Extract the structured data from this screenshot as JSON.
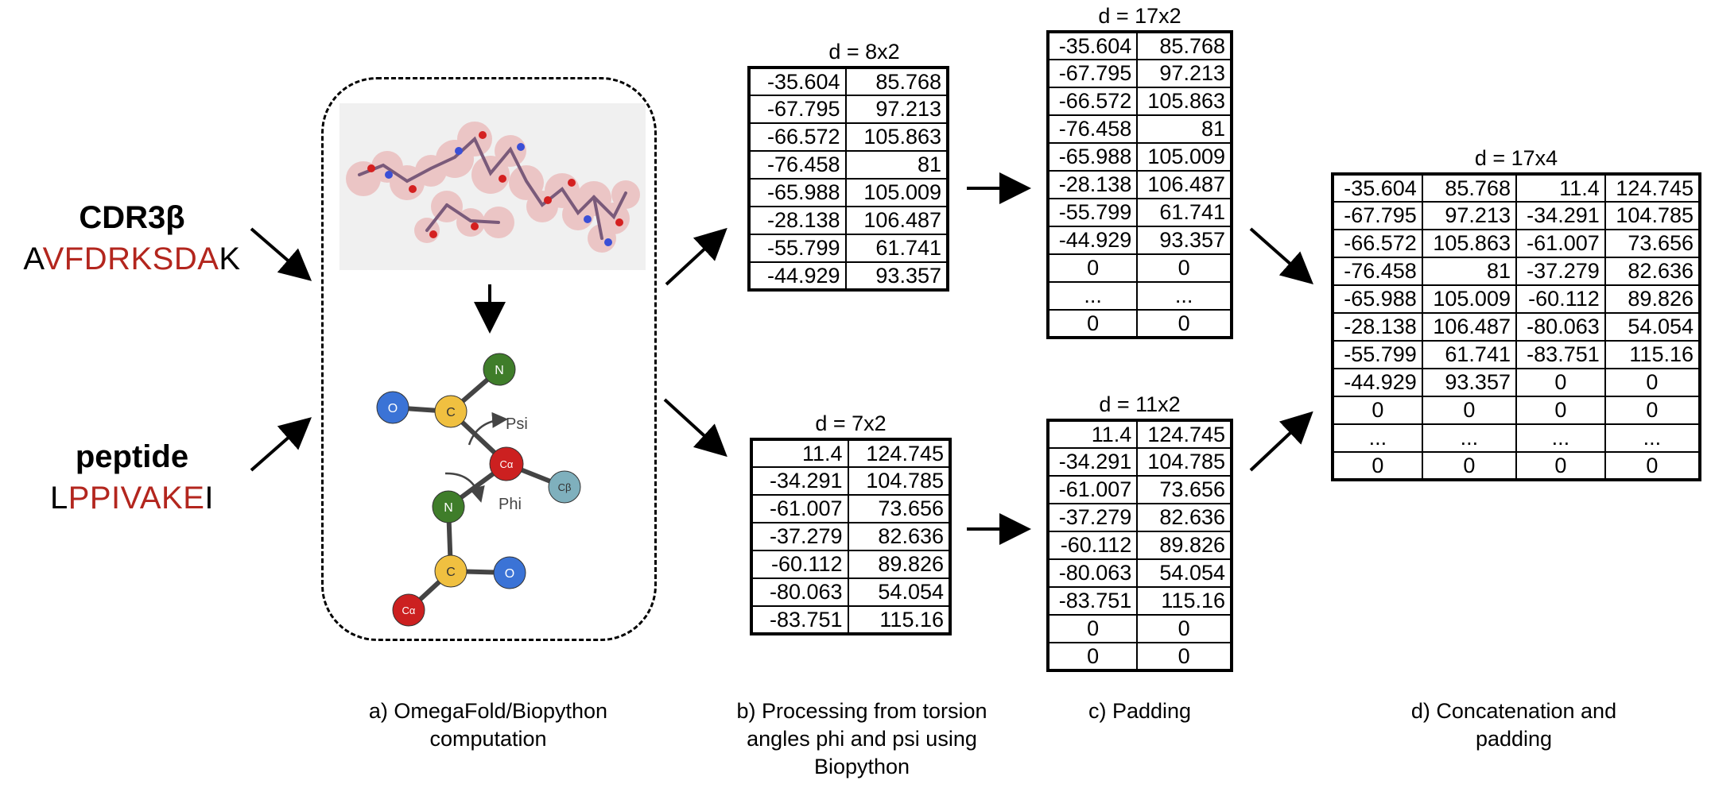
{
  "inputs": {
    "cdr3b": {
      "title": "CDR3β",
      "seq_first": "A",
      "seq_mid": "VFDRKSDA",
      "seq_last": "K"
    },
    "peptide": {
      "title": "peptide",
      "seq_first": "L",
      "seq_mid": "PPIVAKE",
      "seq_last": "I"
    }
  },
  "molecule": {
    "atoms": {
      "n_top": "N",
      "o_left": "O",
      "c_top": "C",
      "ca_mid": "Cα",
      "cb": "Cβ",
      "n_mid": "N",
      "c_bottom": "C",
      "o_bottom": "O",
      "ca_bottom": "Cα"
    },
    "psi_label": "Psi",
    "phi_label": "Phi"
  },
  "matrices": {
    "b_top": {
      "label": "d = 8x2",
      "rows": [
        [
          "-35.604",
          "85.768"
        ],
        [
          "-67.795",
          "97.213"
        ],
        [
          "-66.572",
          "105.863"
        ],
        [
          "-76.458",
          "81"
        ],
        [
          "-65.988",
          "105.009"
        ],
        [
          "-28.138",
          "106.487"
        ],
        [
          "-55.799",
          "61.741"
        ],
        [
          "-44.929",
          "93.357"
        ]
      ]
    },
    "b_bottom": {
      "label": "d = 7x2",
      "rows": [
        [
          "11.4",
          "124.745"
        ],
        [
          "-34.291",
          "104.785"
        ],
        [
          "-61.007",
          "73.656"
        ],
        [
          "-37.279",
          "82.636"
        ],
        [
          "-60.112",
          "89.826"
        ],
        [
          "-80.063",
          "54.054"
        ],
        [
          "-83.751",
          "115.16"
        ]
      ]
    },
    "c_top": {
      "label": "d = 17x2",
      "rows": [
        [
          "-35.604",
          "85.768"
        ],
        [
          "-67.795",
          "97.213"
        ],
        [
          "-66.572",
          "105.863"
        ],
        [
          "-76.458",
          "81"
        ],
        [
          "-65.988",
          "105.009"
        ],
        [
          "-28.138",
          "106.487"
        ],
        [
          "-55.799",
          "61.741"
        ],
        [
          "-44.929",
          "93.357"
        ],
        [
          "0",
          "0"
        ],
        [
          "...",
          "..."
        ],
        [
          "0",
          "0"
        ]
      ]
    },
    "c_bottom": {
      "label": "d = 11x2",
      "rows": [
        [
          "11.4",
          "124.745"
        ],
        [
          "-34.291",
          "104.785"
        ],
        [
          "-61.007",
          "73.656"
        ],
        [
          "-37.279",
          "82.636"
        ],
        [
          "-60.112",
          "89.826"
        ],
        [
          "-80.063",
          "54.054"
        ],
        [
          "-83.751",
          "115.16"
        ],
        [
          "0",
          "0"
        ],
        [
          "0",
          "0"
        ]
      ]
    },
    "d": {
      "label": "d = 17x4",
      "rows": [
        [
          "-35.604",
          "85.768",
          "11.4",
          "124.745"
        ],
        [
          "-67.795",
          "97.213",
          "-34.291",
          "104.785"
        ],
        [
          "-66.572",
          "105.863",
          "-61.007",
          "73.656"
        ],
        [
          "-76.458",
          "81",
          "-37.279",
          "82.636"
        ],
        [
          "-65.988",
          "105.009",
          "-60.112",
          "89.826"
        ],
        [
          "-28.138",
          "106.487",
          "-80.063",
          "54.054"
        ],
        [
          "-55.799",
          "61.741",
          "-83.751",
          "115.16"
        ],
        [
          "-44.929",
          "93.357",
          "0",
          "0"
        ],
        [
          "0",
          "0",
          "0",
          "0"
        ],
        [
          "...",
          "...",
          "...",
          "..."
        ],
        [
          "0",
          "0",
          "0",
          "0"
        ]
      ]
    }
  },
  "captions": {
    "a": [
      "a)   OmegaFold/Biopython",
      "computation"
    ],
    "b": [
      "b) Processing from torsion",
      "angles phi and psi using",
      "Biopython"
    ],
    "c": [
      "c) Padding"
    ],
    "d": [
      "d) Concatenation and",
      "padding"
    ]
  },
  "colors": {
    "sequence_red": "#b3261e",
    "atom_N": "#3f7d2a",
    "atom_O": "#3b73d6",
    "atom_C": "#f0c040",
    "atom_Ca": "#cc2020",
    "atom_Cb": "#7fb0bd"
  }
}
